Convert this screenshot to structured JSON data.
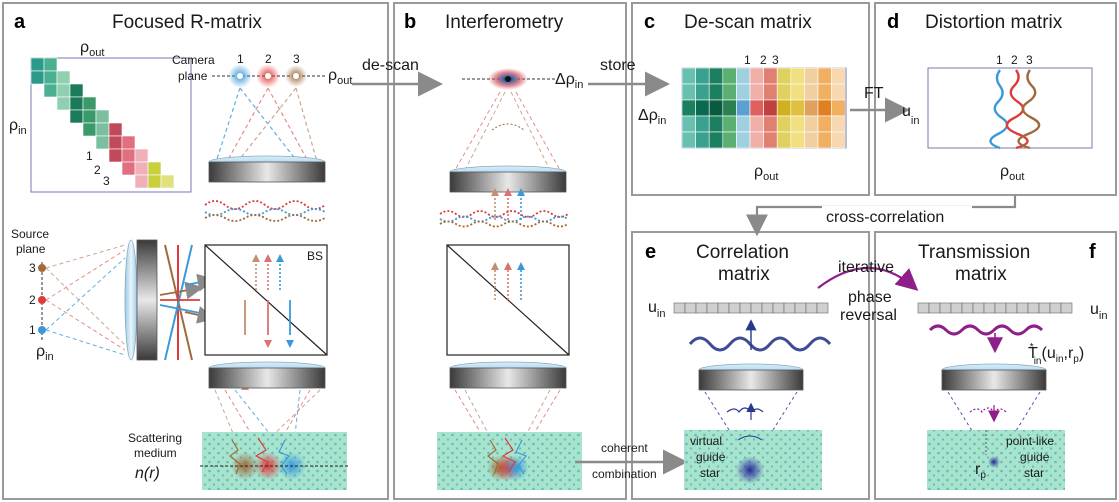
{
  "panels": {
    "a": {
      "tag": "a",
      "title": "Focused  R-matrix"
    },
    "b": {
      "tag": "b",
      "title": "Interferometry"
    },
    "c": {
      "tag": "c",
      "title": "De-scan matrix"
    },
    "d": {
      "tag": "d",
      "title": "Distortion matrix"
    },
    "e": {
      "tag": "e",
      "title_line1": "Correlation",
      "title_line2": "matrix"
    },
    "f": {
      "tag": "f",
      "title_line1": "Transmission",
      "title_line2": "matrix"
    }
  },
  "labels": {
    "rho": "ρ",
    "sub_out": "out",
    "sub_in": "in",
    "delta_rho": "Δρ",
    "u": "u",
    "camera_plane_1": "Camera",
    "camera_plane_2": "plane",
    "source_plane_1": "Source",
    "source_plane_2": "plane",
    "scattering_1": "Scattering",
    "scattering_2": "medium",
    "n_r": "n(r)",
    "bs": "BS",
    "idx1": "1",
    "idx2": "2",
    "idx3": "3",
    "virtual_1": "virtual",
    "virtual_2": "guide",
    "virtual_3": "star",
    "pointlike_1": "point-like",
    "pointlike_2": "guide",
    "pointlike_3": "star",
    "rp_r": "r",
    "rp_p": "p",
    "tstar": "T",
    "tstar_arg": "(u",
    "tstar_arg2": ",r",
    "tstar_end": ")"
  },
  "arrows": {
    "descan": "de-scan",
    "store": "store",
    "ft": "FT",
    "crosscorr": "cross-correlation",
    "iterative_1": "iterative",
    "iterative_2": "phase",
    "iterative_3": "reversal",
    "coherent_1": "coherent",
    "coherent_2": "combination"
  },
  "colors": {
    "blue": "#3a9ad9",
    "red": "#e03a3a",
    "brown": "#a06a3a",
    "purple": "#8e1f8a",
    "navy": "#2a3a8a",
    "medium": "#9ee0c6",
    "panel_border": "#9a9a9a"
  }
}
